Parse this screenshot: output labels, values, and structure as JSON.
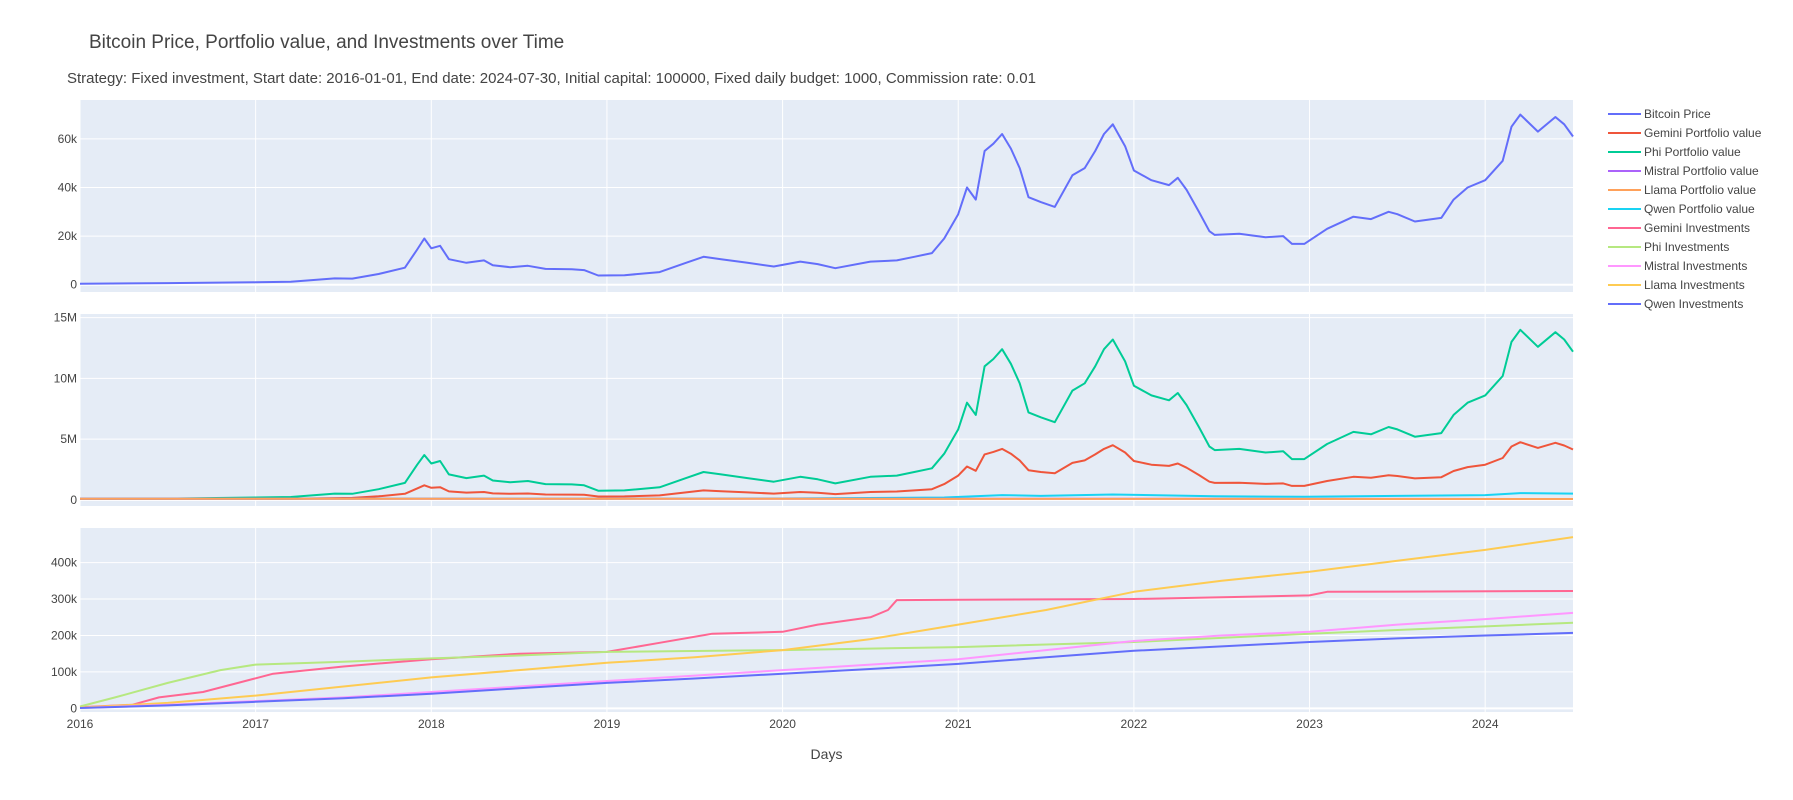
{
  "title": "Bitcoin Price, Portfolio value, and Investments over Time",
  "subtitle": "Strategy: Fixed investment, Start date: 2016-01-01, End date: 2024-07-30, Initial capital: 100000, Fixed daily budget: 1000, Commission rate: 0.01",
  "chart_data": [
    {
      "type": "line",
      "panel": "top",
      "xlabel": "",
      "ylabel": "",
      "xlim": [
        2016.0,
        2024.5
      ],
      "ylim": [
        -3000,
        76000
      ],
      "yticks": [
        0,
        20000,
        40000,
        60000
      ],
      "ytick_labels": [
        "0",
        "20k",
        "40k",
        "60k"
      ],
      "grid": true,
      "series": [
        {
          "name": "Bitcoin Price",
          "color": "#636efa",
          "x": [
            2016.0,
            2016.5,
            2017.0,
            2017.2,
            2017.45,
            2017.55,
            2017.7,
            2017.85,
            2017.92,
            2017.96,
            2018.0,
            2018.05,
            2018.1,
            2018.2,
            2018.3,
            2018.35,
            2018.45,
            2018.55,
            2018.65,
            2018.8,
            2018.87,
            2018.95,
            2019.1,
            2019.3,
            2019.45,
            2019.55,
            2019.65,
            2019.8,
            2019.95,
            2020.1,
            2020.2,
            2020.3,
            2020.5,
            2020.65,
            2020.75,
            2020.85,
            2020.92,
            2021.0,
            2021.05,
            2021.1,
            2021.15,
            2021.2,
            2021.25,
            2021.3,
            2021.35,
            2021.4,
            2021.47,
            2021.55,
            2021.65,
            2021.72,
            2021.78,
            2021.83,
            2021.88,
            2021.95,
            2022.0,
            2022.1,
            2022.2,
            2022.25,
            2022.3,
            2022.37,
            2022.43,
            2022.46,
            2022.6,
            2022.75,
            2022.85,
            2022.9,
            2022.97,
            2023.1,
            2023.25,
            2023.35,
            2023.45,
            2023.5,
            2023.6,
            2023.75,
            2023.82,
            2023.9,
            2024.0,
            2024.1,
            2024.15,
            2024.2,
            2024.3,
            2024.4,
            2024.45,
            2024.5
          ],
          "y": [
            430,
            650,
            1000,
            1200,
            2600,
            2500,
            4400,
            7000,
            14500,
            19000,
            15000,
            16000,
            10500,
            9000,
            10000,
            8000,
            7200,
            7800,
            6500,
            6400,
            6000,
            3800,
            3900,
            5200,
            9000,
            11500,
            10500,
            9000,
            7500,
            9500,
            8500,
            6800,
            9500,
            10000,
            11500,
            13000,
            19000,
            29000,
            40000,
            35000,
            55000,
            58000,
            62000,
            56000,
            48000,
            36000,
            34000,
            32000,
            45000,
            48000,
            55000,
            62000,
            66000,
            57000,
            47000,
            43000,
            41000,
            44000,
            39000,
            30000,
            22000,
            20500,
            21000,
            19500,
            20000,
            16800,
            16800,
            23000,
            28000,
            27000,
            30000,
            29000,
            26000,
            27500,
            35000,
            40000,
            43000,
            51000,
            65000,
            70000,
            63000,
            69000,
            66000,
            61000
          ]
        }
      ]
    },
    {
      "type": "line",
      "panel": "middle",
      "xlabel": "",
      "ylabel": "",
      "xlim": [
        2016.0,
        2024.5
      ],
      "ylim": [
        -500000,
        15300000
      ],
      "yticks": [
        0,
        5000000,
        10000000,
        15000000
      ],
      "ytick_labels": [
        "0",
        "5M",
        "10M",
        "15M"
      ],
      "grid": true,
      "series": [
        {
          "name": "Phi Portfolio value",
          "color": "#00cc96",
          "x": [
            2016.0,
            2016.5,
            2017.0,
            2017.2,
            2017.45,
            2017.55,
            2017.7,
            2017.85,
            2017.92,
            2017.96,
            2018.0,
            2018.05,
            2018.1,
            2018.2,
            2018.3,
            2018.35,
            2018.45,
            2018.55,
            2018.65,
            2018.8,
            2018.87,
            2018.95,
            2019.1,
            2019.3,
            2019.45,
            2019.55,
            2019.65,
            2019.8,
            2019.95,
            2020.1,
            2020.2,
            2020.3,
            2020.5,
            2020.65,
            2020.75,
            2020.85,
            2020.92,
            2021.0,
            2021.05,
            2021.1,
            2021.15,
            2021.2,
            2021.25,
            2021.3,
            2021.35,
            2021.4,
            2021.47,
            2021.55,
            2021.65,
            2021.72,
            2021.78,
            2021.83,
            2021.88,
            2021.95,
            2022.0,
            2022.1,
            2022.2,
            2022.25,
            2022.3,
            2022.37,
            2022.43,
            2022.46,
            2022.6,
            2022.75,
            2022.85,
            2022.9,
            2022.97,
            2023.1,
            2023.25,
            2023.35,
            2023.45,
            2023.5,
            2023.6,
            2023.75,
            2023.82,
            2023.9,
            2024.0,
            2024.1,
            2024.15,
            2024.2,
            2024.3,
            2024.4,
            2024.45,
            2024.5
          ],
          "y": [
            100000,
            110000,
            200000,
            240000,
            520000,
            500000,
            880000,
            1400000,
            2900000,
            3700000,
            3000000,
            3200000,
            2100000,
            1800000,
            2000000,
            1600000,
            1450000,
            1560000,
            1300000,
            1280000,
            1200000,
            760000,
            780000,
            1040000,
            1800000,
            2300000,
            2100000,
            1800000,
            1500000,
            1900000,
            1700000,
            1360000,
            1900000,
            2000000,
            2300000,
            2600000,
            3800000,
            5800000,
            8000000,
            7000000,
            11000000,
            11600000,
            12400000,
            11200000,
            9600000,
            7200000,
            6800000,
            6400000,
            9000000,
            9600000,
            11000000,
            12400000,
            13200000,
            11400000,
            9400000,
            8600000,
            8200000,
            8800000,
            7800000,
            6000000,
            4400000,
            4100000,
            4200000,
            3900000,
            4000000,
            3360000,
            3360000,
            4600000,
            5600000,
            5400000,
            6000000,
            5800000,
            5200000,
            5500000,
            7000000,
            8000000,
            8600000,
            10200000,
            13000000,
            14000000,
            12600000,
            13800000,
            13200000,
            12200000
          ]
        },
        {
          "name": "Gemini Portfolio value",
          "color": "#ef553b",
          "x": [
            2016.0,
            2016.5,
            2017.0,
            2017.2,
            2017.45,
            2017.55,
            2017.7,
            2017.85,
            2017.92,
            2017.96,
            2018.0,
            2018.05,
            2018.1,
            2018.2,
            2018.3,
            2018.35,
            2018.45,
            2018.55,
            2018.65,
            2018.8,
            2018.87,
            2018.95,
            2019.1,
            2019.3,
            2019.45,
            2019.55,
            2019.65,
            2019.8,
            2019.95,
            2020.1,
            2020.2,
            2020.3,
            2020.5,
            2020.65,
            2020.75,
            2020.85,
            2020.92,
            2021.0,
            2021.05,
            2021.1,
            2021.15,
            2021.2,
            2021.25,
            2021.3,
            2021.35,
            2021.4,
            2021.47,
            2021.55,
            2021.65,
            2021.72,
            2021.78,
            2021.83,
            2021.88,
            2021.95,
            2022.0,
            2022.1,
            2022.2,
            2022.25,
            2022.3,
            2022.37,
            2022.43,
            2022.46,
            2022.6,
            2022.75,
            2022.85,
            2022.9,
            2022.97,
            2023.1,
            2023.25,
            2023.35,
            2023.45,
            2023.5,
            2023.6,
            2023.75,
            2023.82,
            2023.9,
            2024.0,
            2024.1,
            2024.15,
            2024.2,
            2024.3,
            2024.4,
            2024.45,
            2024.5
          ],
          "y": [
            100000,
            100000,
            100000,
            100000,
            150000,
            170000,
            300000,
            500000,
            950000,
            1200000,
            1000000,
            1050000,
            700000,
            600000,
            650000,
            540000,
            500000,
            530000,
            450000,
            440000,
            420000,
            280000,
            290000,
            370000,
            620000,
            780000,
            720000,
            620000,
            520000,
            650000,
            590000,
            480000,
            650000,
            690000,
            780000,
            880000,
            1300000,
            2000000,
            2750000,
            2400000,
            3750000,
            3950000,
            4200000,
            3800000,
            3250000,
            2450000,
            2300000,
            2200000,
            3050000,
            3250000,
            3750000,
            4200000,
            4500000,
            3900000,
            3200000,
            2900000,
            2800000,
            3000000,
            2650000,
            2050000,
            1500000,
            1400000,
            1420000,
            1320000,
            1360000,
            1150000,
            1150000,
            1560000,
            1900000,
            1830000,
            2030000,
            1970000,
            1770000,
            1870000,
            2380000,
            2700000,
            2900000,
            3450000,
            4400000,
            4750000,
            4280000,
            4700000,
            4480000,
            4150000
          ]
        },
        {
          "name": "Qwen Portfolio value",
          "color": "#19d3f3",
          "x": [
            2016.0,
            2017.0,
            2017.96,
            2018.95,
            2020.0,
            2020.92,
            2021.25,
            2021.47,
            2021.88,
            2022.46,
            2022.97,
            2023.5,
            2024.0,
            2024.2,
            2024.5
          ],
          "y": [
            100000,
            100000,
            110000,
            100000,
            120000,
            200000,
            400000,
            330000,
            450000,
            300000,
            260000,
            330000,
            400000,
            560000,
            520000
          ]
        },
        {
          "name": "Mistral Portfolio value",
          "color": "#ab63fa",
          "x": [
            2016.0,
            2020.0,
            2022.0,
            2024.5
          ],
          "y": [
            100000,
            100000,
            90000,
            80000
          ]
        },
        {
          "name": "Llama Portfolio value",
          "color": "#ffa15a",
          "x": [
            2016.0,
            2020.0,
            2022.0,
            2024.5
          ],
          "y": [
            100000,
            95000,
            85000,
            75000
          ]
        }
      ]
    },
    {
      "type": "line",
      "panel": "bottom",
      "xlabel": "Days",
      "ylabel": "",
      "xlim": [
        2016.0,
        2024.5
      ],
      "ylim": [
        -10000,
        495000
      ],
      "yticks": [
        0,
        100000,
        200000,
        300000,
        400000
      ],
      "ytick_labels": [
        "0",
        "100k",
        "200k",
        "300k",
        "400k"
      ],
      "xticks": [
        2016,
        2017,
        2018,
        2019,
        2020,
        2021,
        2022,
        2023,
        2024
      ],
      "xtick_labels": [
        "2016",
        "2017",
        "2018",
        "2019",
        "2020",
        "2021",
        "2022",
        "2023",
        "2024"
      ],
      "grid": true,
      "series": [
        {
          "name": "Gemini Investments",
          "color": "#ff6692",
          "x": [
            2016.0,
            2016.3,
            2016.45,
            2016.7,
            2016.9,
            2017.1,
            2017.5,
            2018.0,
            2018.5,
            2019.0,
            2019.3,
            2019.6,
            2020.0,
            2020.2,
            2020.5,
            2020.6,
            2020.65,
            2021.0,
            2022.0,
            2023.0,
            2023.1,
            2024.5
          ],
          "y": [
            3000,
            10000,
            30000,
            45000,
            70000,
            95000,
            115000,
            135000,
            150000,
            155000,
            180000,
            205000,
            210000,
            230000,
            250000,
            270000,
            297000,
            298000,
            300000,
            310000,
            320000,
            322000
          ]
        },
        {
          "name": "Phi Investments",
          "color": "#b6e880",
          "x": [
            2016.0,
            2016.2,
            2016.5,
            2016.8,
            2017.0,
            2017.5,
            2018.0,
            2018.5,
            2019.0,
            2020.0,
            2021.0,
            2022.0,
            2023.0,
            2023.5,
            2024.5
          ],
          "y": [
            5000,
            30000,
            70000,
            105000,
            120000,
            128000,
            137000,
            145000,
            155000,
            160000,
            168000,
            182000,
            205000,
            215000,
            235000
          ]
        },
        {
          "name": "Llama Investments",
          "color": "#fecb52",
          "x": [
            2016.0,
            2016.5,
            2017.0,
            2017.5,
            2018.0,
            2018.5,
            2019.0,
            2019.5,
            2020.0,
            2020.5,
            2021.0,
            2021.5,
            2022.0,
            2022.5,
            2023.0,
            2023.5,
            2024.0,
            2024.5
          ],
          "y": [
            2000,
            15000,
            35000,
            60000,
            85000,
            105000,
            125000,
            140000,
            160000,
            190000,
            230000,
            270000,
            320000,
            350000,
            375000,
            405000,
            435000,
            470000
          ]
        },
        {
          "name": "Mistral Investments",
          "color": "#ff97ff",
          "x": [
            2016.0,
            2016.5,
            2017.0,
            2017.5,
            2018.0,
            2018.5,
            2019.0,
            2019.5,
            2020.0,
            2020.5,
            2021.0,
            2021.5,
            2022.0,
            2022.5,
            2023.0,
            2023.5,
            2024.0,
            2024.5
          ],
          "y": [
            1000,
            10000,
            20000,
            30000,
            45000,
            60000,
            75000,
            90000,
            105000,
            120000,
            135000,
            160000,
            185000,
            200000,
            210000,
            230000,
            245000,
            262000
          ]
        },
        {
          "name": "Qwen Investments",
          "color": "#636efa",
          "x": [
            2016.0,
            2016.5,
            2017.0,
            2017.5,
            2018.0,
            2018.5,
            2019.0,
            2019.5,
            2020.0,
            2020.5,
            2021.0,
            2021.5,
            2022.0,
            2022.5,
            2023.0,
            2023.5,
            2024.0,
            2024.5
          ],
          "y": [
            1000,
            8000,
            18000,
            28000,
            40000,
            55000,
            70000,
            82000,
            95000,
            108000,
            122000,
            140000,
            158000,
            170000,
            182000,
            192000,
            200000,
            207000
          ]
        }
      ]
    }
  ],
  "legend": {
    "placement": "right",
    "items": [
      {
        "name": "Bitcoin Price",
        "color": "#636efa"
      },
      {
        "name": "Gemini Portfolio value",
        "color": "#ef553b"
      },
      {
        "name": "Phi Portfolio value",
        "color": "#00cc96"
      },
      {
        "name": "Mistral Portfolio value",
        "color": "#ab63fa"
      },
      {
        "name": "Llama Portfolio value",
        "color": "#ffa15a"
      },
      {
        "name": "Qwen Portfolio value",
        "color": "#19d3f3"
      },
      {
        "name": "Gemini Investments",
        "color": "#ff6692"
      },
      {
        "name": "Phi Investments",
        "color": "#b6e880"
      },
      {
        "name": "Mistral Investments",
        "color": "#ff97ff"
      },
      {
        "name": "Llama Investments",
        "color": "#fecb52"
      },
      {
        "name": "Qwen Investments",
        "color": "#636efa"
      }
    ]
  }
}
